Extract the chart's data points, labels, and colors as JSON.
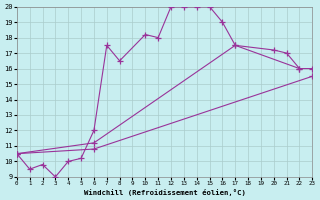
{
  "xlabel": "Windchill (Refroidissement éolien,°C)",
  "xlim": [
    0,
    23
  ],
  "ylim": [
    9,
    20
  ],
  "xtick_labels": [
    "0",
    "1",
    "2",
    "3",
    "4",
    "5",
    "6",
    "7",
    "8",
    "9",
    "10",
    "11",
    "12",
    "13",
    "14",
    "15",
    "16",
    "17",
    "18",
    "19",
    "20",
    "21",
    "22",
    "23"
  ],
  "ytick_labels": [
    "9",
    "10",
    "11",
    "12",
    "13",
    "14",
    "15",
    "16",
    "17",
    "18",
    "19",
    "20"
  ],
  "bg_color": "#c8eef0",
  "line_color": "#993399",
  "grid_color": "#aacccc",
  "line1_x": [
    0,
    1,
    2,
    3,
    4,
    5,
    6,
    7,
    8,
    10,
    11,
    12,
    13,
    14,
    15,
    16,
    17,
    20,
    21,
    22
  ],
  "line1_y": [
    10.5,
    9.5,
    9.8,
    9.0,
    10.0,
    10.2,
    12.0,
    17.5,
    16.5,
    18.2,
    18.0,
    20.0,
    20.0,
    20.0,
    20.0,
    19.0,
    17.5,
    17.2,
    17.0,
    16.0
  ],
  "line2_x": [
    0,
    6,
    17,
    22,
    23
  ],
  "line2_y": [
    10.5,
    11.2,
    17.5,
    16.0,
    16.0
  ],
  "line3_x": [
    0,
    6,
    23
  ],
  "line3_y": [
    10.5,
    10.8,
    15.5
  ],
  "font_family": "monospace"
}
